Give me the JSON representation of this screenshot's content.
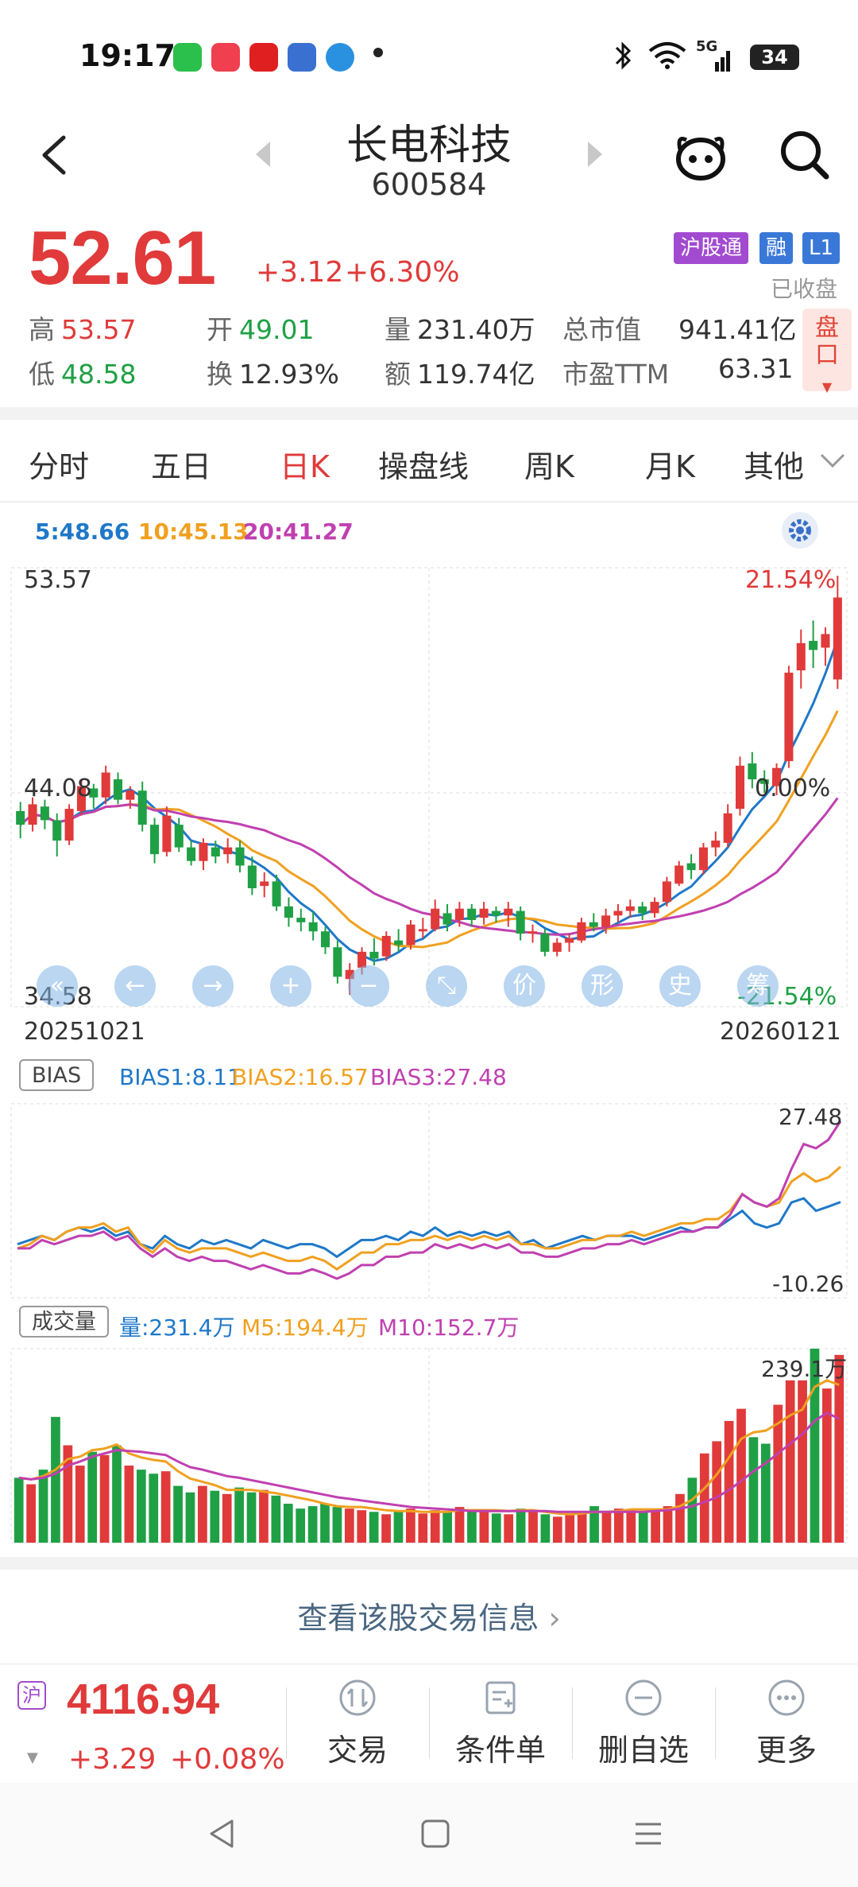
{
  "status_bar": {
    "time": "19:17",
    "network": "5G",
    "battery": "34"
  },
  "header": {
    "title": "长电科技",
    "code": "600584"
  },
  "quote": {
    "price": "52.61",
    "change": "+3.12",
    "change_pct": "+6.30%",
    "badges": [
      "沪股通",
      "融",
      "L1"
    ],
    "market_status": "已收盘",
    "high_label": "高",
    "high": "53.57",
    "open_label": "开",
    "open": "49.01",
    "volume_label": "量",
    "volume": "231.40万",
    "mktcap_label": "总市值",
    "mktcap": "941.41亿",
    "low_label": "低",
    "low": "48.58",
    "turnover_label": "换",
    "turnover": "12.93%",
    "amount_label": "额",
    "amount": "119.74亿",
    "pe_label": "市盈TTM",
    "pe": "63.31",
    "pankou_label": "盘口"
  },
  "tabs": [
    "分时",
    "五日",
    "日K",
    "操盘线",
    "周K",
    "月K",
    "其他"
  ],
  "active_tab": "日K",
  "ma_legend": {
    "ma5": "5:48.66",
    "ma10": "10:45.13",
    "ma20": "20:41.27"
  },
  "kline": {
    "price_top": "53.57",
    "price_mid": "44.08",
    "price_bottom": "34.58",
    "pct_top": "21.54%",
    "pct_mid": "0.00%",
    "pct_bottom": "-21.54%",
    "date_start": "20251021",
    "date_end": "20260121",
    "tool_labels": [
      "«",
      "←",
      "→",
      "+",
      "−",
      "⤡",
      "价",
      "形",
      "史",
      "筹"
    ]
  },
  "bias": {
    "name": "BIAS",
    "bias1": "BIAS1:8.11",
    "bias2": "BIAS2:16.57",
    "bias3": "BIAS3:27.48",
    "max": "27.48",
    "min": "-10.26"
  },
  "volume": {
    "name": "成交量",
    "vol": "量:231.4万",
    "m5": "M5:194.4万",
    "m10": "M10:152.7万",
    "max": "239.1万"
  },
  "trade_info_link": "查看该股交易信息",
  "bottom_bar": {
    "index_tag": "沪",
    "index_value": "4116.94",
    "index_change": "+3.29",
    "index_change_pct": "+0.08%",
    "buttons": [
      "交易",
      "条件单",
      "删自选",
      "更多"
    ]
  },
  "colors": {
    "up": "#e03a3a",
    "down": "#1fa045",
    "ma5": "#1f78c8",
    "ma10": "#f0a020",
    "ma20": "#c040b0"
  },
  "chart_data": [
    {
      "type": "candlestick",
      "title": "",
      "xlabel": "",
      "ylabel": "",
      "x_range": [
        "20251021",
        "20260121"
      ],
      "ylim": [
        34.58,
        53.57
      ],
      "ohlc": [
        [
          43.2,
          43.6,
          42.0,
          42.6
        ],
        [
          42.6,
          43.8,
          42.3,
          43.5
        ],
        [
          43.4,
          43.7,
          42.4,
          42.8
        ],
        [
          42.8,
          43.1,
          41.2,
          41.9
        ],
        [
          41.9,
          43.5,
          41.7,
          43.3
        ],
        [
          43.2,
          44.6,
          43.0,
          44.3
        ],
        [
          44.2,
          44.4,
          43.3,
          43.8
        ],
        [
          43.8,
          45.2,
          43.5,
          44.9
        ],
        [
          44.6,
          44.9,
          43.5,
          43.7
        ],
        [
          43.7,
          44.3,
          43.3,
          44.1
        ],
        [
          44.1,
          44.5,
          42.3,
          42.6
        ],
        [
          42.6,
          42.9,
          40.9,
          41.3
        ],
        [
          41.4,
          43.4,
          41.2,
          43.0
        ],
        [
          42.6,
          42.9,
          41.4,
          41.6
        ],
        [
          41.6,
          41.9,
          40.8,
          41.0
        ],
        [
          41.0,
          42.0,
          40.6,
          41.8
        ],
        [
          41.6,
          41.9,
          40.9,
          41.2
        ],
        [
          41.3,
          42.0,
          40.9,
          41.6
        ],
        [
          41.6,
          41.9,
          40.5,
          40.8
        ],
        [
          40.8,
          41.2,
          39.5,
          39.8
        ],
        [
          39.9,
          40.5,
          39.4,
          40.1
        ],
        [
          40.1,
          40.4,
          38.8,
          39.0
        ],
        [
          39.0,
          39.4,
          38.1,
          38.5
        ],
        [
          38.5,
          38.9,
          37.9,
          38.3
        ],
        [
          38.3,
          38.8,
          37.5,
          37.9
        ],
        [
          37.9,
          38.1,
          36.9,
          37.2
        ],
        [
          37.2,
          37.5,
          35.6,
          35.9
        ],
        [
          35.8,
          36.5,
          35.1,
          36.2
        ],
        [
          36.3,
          37.2,
          36.0,
          37.0
        ],
        [
          37.0,
          37.6,
          36.4,
          36.7
        ],
        [
          36.8,
          37.9,
          36.6,
          37.7
        ],
        [
          37.5,
          38.0,
          37.0,
          37.3
        ],
        [
          37.3,
          38.4,
          37.1,
          38.2
        ],
        [
          37.9,
          38.5,
          37.6,
          38.0
        ],
        [
          38.0,
          39.3,
          37.9,
          38.9
        ],
        [
          38.7,
          39.1,
          37.9,
          38.2
        ],
        [
          38.4,
          39.2,
          38.1,
          38.9
        ],
        [
          38.9,
          39.1,
          38.1,
          38.4
        ],
        [
          38.5,
          39.2,
          38.2,
          38.9
        ],
        [
          38.8,
          39.0,
          38.3,
          38.6
        ],
        [
          38.6,
          39.2,
          38.1,
          38.9
        ],
        [
          38.8,
          39.0,
          37.5,
          37.8
        ],
        [
          37.8,
          38.2,
          37.4,
          37.9
        ],
        [
          37.8,
          38.0,
          36.8,
          37.0
        ],
        [
          37.0,
          37.6,
          36.8,
          37.4
        ],
        [
          37.4,
          37.8,
          37.0,
          37.6
        ],
        [
          37.5,
          38.5,
          37.4,
          38.3
        ],
        [
          38.3,
          38.7,
          37.9,
          38.1
        ],
        [
          38.1,
          38.9,
          37.8,
          38.6
        ],
        [
          38.6,
          39.1,
          38.3,
          38.8
        ],
        [
          38.8,
          39.3,
          38.5,
          39.0
        ],
        [
          39.0,
          39.2,
          38.4,
          38.7
        ],
        [
          38.7,
          39.4,
          38.5,
          39.2
        ],
        [
          39.2,
          40.3,
          39.0,
          40.1
        ],
        [
          40.0,
          41.0,
          39.9,
          40.8
        ],
        [
          40.9,
          41.3,
          40.2,
          40.6
        ],
        [
          40.6,
          41.8,
          40.4,
          41.6
        ],
        [
          41.6,
          42.3,
          41.2,
          41.9
        ],
        [
          41.8,
          43.5,
          41.6,
          43.1
        ],
        [
          43.3,
          45.6,
          43.0,
          45.2
        ],
        [
          45.3,
          45.8,
          44.2,
          44.6
        ],
        [
          44.6,
          45.0,
          44.0,
          44.4
        ],
        [
          44.3,
          45.3,
          43.9,
          45.1
        ],
        [
          45.4,
          49.6,
          45.1,
          49.3
        ],
        [
          49.4,
          51.2,
          48.6,
          50.6
        ],
        [
          50.7,
          51.6,
          49.5,
          50.3
        ],
        [
          50.4,
          51.3,
          49.6,
          51.0
        ],
        [
          49.0,
          53.57,
          48.58,
          52.61
        ]
      ]
    },
    {
      "type": "line",
      "title": "BIAS",
      "xlabel": "",
      "ylabel": "",
      "ylim": [
        -10.26,
        27.48
      ],
      "series": [
        {
          "name": "BIAS1",
          "values": [
            -2,
            -1,
            0,
            -1,
            1,
            2,
            1,
            2,
            0,
            1,
            -2,
            -3,
            0,
            -2,
            -3,
            -1,
            -2,
            -1,
            -2,
            -3,
            -1,
            -2,
            -3,
            -2,
            -2,
            -3,
            -5,
            -3,
            -1,
            -1,
            0,
            -1,
            1,
            0,
            2,
            0,
            1,
            0,
            1,
            0,
            1,
            -2,
            -1,
            -3,
            -2,
            -1,
            0,
            -1,
            0,
            0,
            0,
            -1,
            0,
            1,
            2,
            1,
            2,
            2,
            4,
            6,
            3,
            2,
            3,
            8,
            9,
            6,
            7,
            8.11
          ]
        },
        {
          "name": "BIAS2",
          "values": [
            -3,
            -2,
            0,
            -1,
            1,
            2,
            2,
            3,
            1,
            2,
            -2,
            -4,
            -1,
            -3,
            -4,
            -3,
            -3,
            -3,
            -4,
            -5,
            -4,
            -5,
            -6,
            -6,
            -5,
            -6,
            -8,
            -6,
            -4,
            -4,
            -2,
            -2,
            -1,
            -1,
            0,
            -1,
            0,
            -1,
            0,
            -1,
            0,
            -2,
            -2,
            -3,
            -3,
            -2,
            -1,
            -1,
            0,
            0,
            1,
            0,
            1,
            2,
            3,
            3,
            4,
            4,
            6,
            10,
            8,
            7,
            8,
            13,
            15,
            13,
            14,
            16.57
          ]
        },
        {
          "name": "BIAS3",
          "values": [
            -3,
            -3,
            -1,
            -2,
            -1,
            0,
            0,
            1,
            -1,
            0,
            -3,
            -5,
            -3,
            -5,
            -6,
            -5,
            -6,
            -6,
            -7,
            -8,
            -7,
            -8,
            -9,
            -9,
            -8,
            -9,
            -10.26,
            -9,
            -7,
            -7,
            -5,
            -5,
            -4,
            -4,
            -2,
            -3,
            -2,
            -3,
            -2,
            -3,
            -2,
            -4,
            -4,
            -5,
            -5,
            -4,
            -3,
            -3,
            -2,
            -2,
            -1,
            -2,
            -1,
            0,
            1,
            1,
            2,
            2,
            5,
            10,
            8,
            7,
            9,
            16,
            22,
            21,
            23,
            27.48
          ]
        }
      ]
    },
    {
      "type": "bar",
      "title": "成交量",
      "xlabel": "",
      "ylabel": "",
      "ylim": [
        0,
        239.1
      ],
      "values": [
        80,
        72,
        90,
        155,
        120,
        95,
        112,
        108,
        120,
        95,
        90,
        85,
        88,
        70,
        62,
        70,
        64,
        60,
        68,
        62,
        65,
        58,
        48,
        42,
        45,
        48,
        44,
        42,
        40,
        38,
        35,
        38,
        42,
        36,
        40,
        38,
        44,
        40,
        38,
        36,
        35,
        42,
        38,
        35,
        32,
        34,
        38,
        45,
        38,
        42,
        40,
        38,
        40,
        45,
        60,
        80,
        110,
        125,
        150,
        165,
        130,
        122,
        170,
        200,
        200,
        239.1,
        190,
        231.4
      ],
      "series": [
        {
          "name": "M5",
          "values": [
            80,
            78,
            82,
            90,
            103,
            106,
            114,
            116,
            121,
            110,
            105,
            102,
            100,
            88,
            79,
            75,
            71,
            65,
            65,
            65,
            63,
            61,
            58,
            55,
            52,
            48,
            45,
            44,
            44,
            42,
            40,
            39,
            39,
            38,
            38,
            38,
            40,
            40,
            40,
            40,
            39,
            40,
            40,
            38,
            36,
            35,
            36,
            38,
            38,
            39,
            41,
            41,
            41,
            41,
            45,
            53,
            67,
            84,
            105,
            128,
            136,
            138,
            147,
            157,
            164,
            192,
            200,
            194.4
          ]
        },
        {
          "name": "M10",
          "values": [
            80,
            78,
            80,
            85,
            95,
            100,
            106,
            110,
            114,
            113,
            112,
            110,
            108,
            100,
            93,
            90,
            86,
            82,
            80,
            77,
            74,
            71,
            68,
            65,
            62,
            59,
            56,
            54,
            52,
            50,
            48,
            46,
            44,
            43,
            42,
            41,
            40,
            39,
            39,
            39,
            39,
            39,
            39,
            39,
            38,
            38,
            38,
            38,
            38,
            38,
            38,
            38,
            39,
            40,
            42,
            45,
            50,
            56,
            65,
            76,
            88,
            98,
            110,
            122,
            134,
            150,
            160,
            152.7
          ]
        }
      ]
    }
  ]
}
